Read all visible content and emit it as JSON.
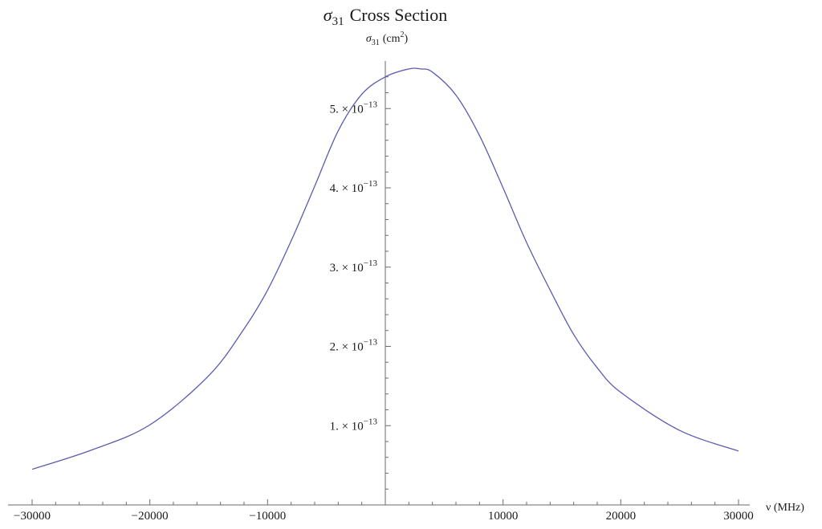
{
  "chart_data": {
    "type": "line",
    "title_symbol": "σ",
    "title_subscript": "31",
    "title_text": "Cross Section",
    "ylabel_symbol": "σ",
    "ylabel_subscript": "31",
    "ylabel_unit": "(cm",
    "ylabel_unit_exp": "2",
    "ylabel_unit_close": ")",
    "xlabel": "ν (MHz)",
    "xlim": [
      -30000,
      30000
    ],
    "ylim": [
      0,
      5.6e-13
    ],
    "x_ticks": [
      {
        "value": -30000,
        "label": "−30000"
      },
      {
        "value": -20000,
        "label": "−20000"
      },
      {
        "value": -10000,
        "label": "−10000"
      },
      {
        "value": 10000,
        "label": "10000"
      },
      {
        "value": 20000,
        "label": "20000"
      },
      {
        "value": 30000,
        "label": "30000"
      }
    ],
    "y_ticks": [
      {
        "value": 1e-13,
        "mantissa": "1.",
        "base": "× 10",
        "exp": "−13"
      },
      {
        "value": 2e-13,
        "mantissa": "2.",
        "base": "× 10",
        "exp": "−13"
      },
      {
        "value": 3e-13,
        "mantissa": "3.",
        "base": "× 10",
        "exp": "−13"
      },
      {
        "value": 4e-13,
        "mantissa": "4.",
        "base": "× 10",
        "exp": "−13"
      },
      {
        "value": 5e-13,
        "mantissa": "5.",
        "base": "× 10",
        "exp": "−13"
      }
    ],
    "series": [
      {
        "color": "#5b5bb0",
        "x": [
          -30000,
          -25000,
          -20000,
          -15000,
          -12000,
          -10000,
          -8000,
          -6000,
          -4000,
          -2000,
          0,
          2000,
          3000,
          4000,
          6000,
          8000,
          10000,
          12000,
          14000,
          16000,
          18000,
          20000,
          25000,
          30000
        ],
        "y": [
          4.5e-14,
          6.9e-14,
          1.01e-13,
          1.63e-13,
          2.22e-13,
          2.71e-13,
          3.33e-13,
          4.02e-13,
          4.72e-13,
          5.18e-13,
          5.4e-13,
          5.5e-13,
          5.5e-13,
          5.46e-13,
          5.17e-13,
          4.66e-13,
          4e-13,
          3.31e-13,
          2.71e-13,
          2.15e-13,
          1.73e-13,
          1.42e-13,
          9.4e-14,
          6.8e-14
        ]
      }
    ]
  }
}
